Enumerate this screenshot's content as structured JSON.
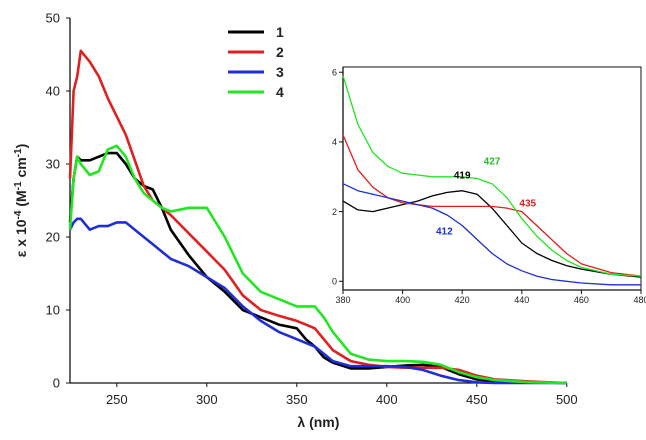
{
  "chart_data": [
    {
      "type": "line",
      "ylabel_parts": [
        {
          "text": "ε x 10"
        },
        {
          "text": "-4",
          "sup": true
        },
        {
          "text": " (M"
        },
        {
          "text": "-1",
          "sup": true
        },
        {
          "text": " cm"
        },
        {
          "text": "-1",
          "sup": true
        },
        {
          "text": ")"
        }
      ],
      "xlabel": "λ (nm)",
      "xlim": [
        224,
        500
      ],
      "xticks": [
        250,
        300,
        350,
        400,
        450,
        500
      ],
      "ylim": [
        0,
        50
      ],
      "yticks": [
        0,
        10,
        20,
        30,
        40,
        50
      ],
      "legend": "top-left",
      "x": [
        224,
        226,
        228,
        230,
        235,
        240,
        245,
        250,
        255,
        260,
        265,
        270,
        275,
        280,
        290,
        300,
        310,
        320,
        330,
        340,
        350,
        355,
        360,
        365,
        370,
        380,
        390,
        400,
        410,
        420,
        430,
        440,
        450,
        460,
        480,
        500
      ],
      "series": [
        {
          "name": "1",
          "color": "#000000",
          "values": [
            22,
            28,
            31,
            30.5,
            30.5,
            31,
            31.5,
            31.5,
            30,
            28,
            27,
            26.5,
            24,
            21,
            17.5,
            14.5,
            12.5,
            10,
            9,
            8,
            7.5,
            6,
            5,
            3.5,
            2.8,
            2,
            2,
            2.2,
            2.4,
            2.5,
            2.2,
            1.2,
            0.5,
            0.2,
            0.1,
            0
          ]
        },
        {
          "name": "2",
          "color": "#e02020",
          "values": [
            28,
            40,
            42,
            45.5,
            44,
            42,
            39,
            36.5,
            34,
            30.5,
            27,
            25,
            24,
            23,
            20.5,
            18,
            15.5,
            12,
            10,
            9.2,
            8.5,
            8,
            7.5,
            6,
            4.5,
            3,
            2.5,
            2.2,
            2.1,
            2.1,
            2.1,
            1.8,
            1,
            0.5,
            0.2,
            0
          ]
        },
        {
          "name": "3",
          "color": "#1f2ed6",
          "values": [
            21,
            22,
            22.5,
            22.5,
            21,
            21.5,
            21.5,
            22,
            22,
            21,
            20,
            19,
            18,
            17,
            16,
            14.5,
            13,
            10.5,
            8.5,
            7,
            6,
            5.5,
            5,
            4,
            3,
            2.3,
            2.3,
            2.3,
            2.2,
            1.8,
            1,
            0.4,
            0.1,
            0,
            0,
            0
          ]
        },
        {
          "name": "4",
          "color": "#22e622",
          "values": [
            21,
            28,
            31,
            30,
            28.5,
            29,
            32,
            32.5,
            31,
            28,
            26,
            25,
            24,
            23.5,
            24,
            24,
            20,
            15,
            12.5,
            11.5,
            10.5,
            10.5,
            10.5,
            9,
            7,
            4,
            3.2,
            3,
            3,
            2.9,
            2.5,
            1.5,
            0.8,
            0.4,
            0.1,
            0
          ]
        }
      ]
    },
    {
      "type": "line",
      "xlim": [
        380,
        480
      ],
      "xticks": [
        380,
        400,
        420,
        440,
        460,
        480
      ],
      "ylim": [
        -0.25,
        6.15
      ],
      "yticks": [
        0,
        2,
        4,
        6
      ],
      "x": [
        380,
        385,
        390,
        395,
        400,
        405,
        410,
        415,
        420,
        425,
        430,
        435,
        440,
        445,
        450,
        455,
        460,
        470,
        480
      ],
      "series": [
        {
          "color": "#000000",
          "values": [
            2.3,
            2.05,
            2.0,
            2.1,
            2.2,
            2.3,
            2.45,
            2.55,
            2.6,
            2.5,
            2.1,
            1.6,
            1.1,
            0.8,
            0.6,
            0.45,
            0.35,
            0.2,
            0.12
          ]
        },
        {
          "color": "#e02020",
          "values": [
            4.2,
            3.2,
            2.7,
            2.4,
            2.25,
            2.2,
            2.15,
            2.15,
            2.15,
            2.15,
            2.15,
            2.1,
            2.0,
            1.6,
            1.2,
            0.8,
            0.5,
            0.25,
            0.15
          ]
        },
        {
          "color": "#1f2ed6",
          "values": [
            2.8,
            2.6,
            2.5,
            2.4,
            2.3,
            2.2,
            2.1,
            1.9,
            1.6,
            1.2,
            0.8,
            0.5,
            0.3,
            0.15,
            0.05,
            0,
            -0.05,
            -0.1,
            -0.1
          ]
        },
        {
          "color": "#22e622",
          "values": [
            5.9,
            4.5,
            3.7,
            3.3,
            3.1,
            3.05,
            3.0,
            3.0,
            3.0,
            2.95,
            2.8,
            2.4,
            1.8,
            1.3,
            0.9,
            0.6,
            0.4,
            0.2,
            0.15
          ]
        }
      ],
      "annotations": [
        {
          "text": "419",
          "color": "#000000"
        },
        {
          "text": "427",
          "color": "#22c022"
        },
        {
          "text": "435",
          "color": "#e02020"
        },
        {
          "text": "412",
          "color": "#1f2ed6"
        }
      ]
    }
  ]
}
